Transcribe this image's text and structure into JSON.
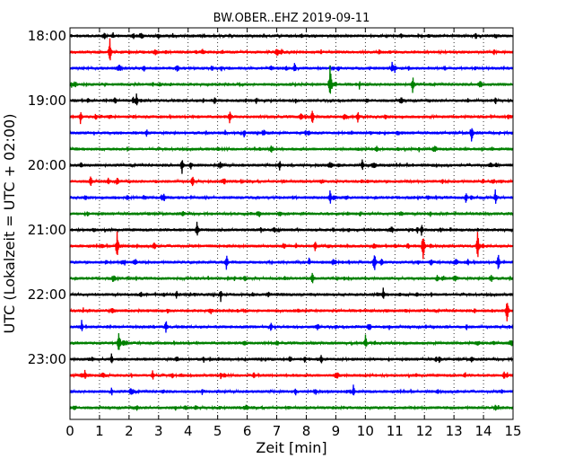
{
  "chart_data": {
    "type": "line",
    "title": "BW.OBER..EHZ 2019-09-11",
    "xlabel": "Zeit  [min]",
    "ylabel": "UTC (Lokalzeit = UTC + 02:00)",
    "xlim": [
      0,
      15
    ],
    "x_ticks": [
      "0",
      "1",
      "2",
      "3",
      "4",
      "5",
      "6",
      "7",
      "8",
      "9",
      "10",
      "11",
      "12",
      "13",
      "14",
      "15"
    ],
    "y_tick_labels": [
      "18:00",
      "19:00",
      "20:00",
      "21:00",
      "22:00",
      "23:00"
    ],
    "grid": true,
    "trace_colors": [
      "#000000",
      "#ff0000",
      "#0000ff",
      "#008000"
    ],
    "traces": [
      {
        "start": "18:00",
        "events": [
          [
            11.2,
            0.5
          ]
        ]
      },
      {
        "start": "18:15",
        "events": [
          [
            1.35,
            1.6
          ]
        ]
      },
      {
        "start": "18:30",
        "events": [
          [
            7.6,
            0.8
          ],
          [
            10.9,
            0.8
          ],
          [
            11.0,
            0.6
          ]
        ]
      },
      {
        "start": "18:45",
        "events": [
          [
            8.8,
            2.6
          ],
          [
            11.6,
            1.2
          ],
          [
            9.8,
            0.6
          ]
        ]
      },
      {
        "start": "19:00",
        "events": [
          [
            2.25,
            1.0
          ],
          [
            6.3,
            0.6
          ],
          [
            14.4,
            0.6
          ]
        ]
      },
      {
        "start": "19:15",
        "events": [
          [
            0.35,
            0.9
          ],
          [
            5.4,
            1.0
          ],
          [
            8.2,
            1.1
          ],
          [
            9.75,
            0.8
          ]
        ]
      },
      {
        "start": "19:30",
        "events": [
          [
            2.6,
            0.6
          ],
          [
            5.9,
            0.7
          ],
          [
            13.6,
            1.3
          ]
        ]
      },
      {
        "start": "19:45",
        "events": []
      },
      {
        "start": "20:00",
        "events": [
          [
            3.8,
            1.0
          ],
          [
            7.1,
            0.7
          ],
          [
            9.9,
            0.8
          ]
        ]
      },
      {
        "start": "20:15",
        "events": [
          [
            0.7,
            0.9
          ],
          [
            1.6,
            0.8
          ],
          [
            4.15,
            1.0
          ]
        ]
      },
      {
        "start": "20:30",
        "events": [
          [
            8.8,
            1.2
          ],
          [
            13.4,
            0.8
          ],
          [
            14.4,
            1.0
          ]
        ]
      },
      {
        "start": "20:45",
        "events": []
      },
      {
        "start": "21:00",
        "events": [
          [
            4.3,
            1.2
          ],
          [
            11.9,
            0.8
          ]
        ]
      },
      {
        "start": "21:15",
        "events": [
          [
            1.6,
            1.8
          ],
          [
            8.3,
            1.0
          ],
          [
            11.95,
            2.2
          ],
          [
            13.8,
            1.8
          ]
        ]
      },
      {
        "start": "21:30",
        "events": [
          [
            5.3,
            1.2
          ],
          [
            8.1,
            0.7
          ],
          [
            10.3,
            1.4
          ],
          [
            14.5,
            1.2
          ]
        ]
      },
      {
        "start": "21:45",
        "events": [
          [
            8.2,
            1.0
          ]
        ]
      },
      {
        "start": "22:00",
        "events": [
          [
            5.1,
            0.9
          ],
          [
            10.6,
            0.9
          ],
          [
            3.6,
            0.6
          ]
        ]
      },
      {
        "start": "22:15",
        "events": [
          [
            14.8,
            1.6
          ],
          [
            3.3,
            0.5
          ],
          [
            13.7,
            0.5
          ]
        ]
      },
      {
        "start": "22:30",
        "events": [
          [
            0.4,
            0.8
          ],
          [
            3.25,
            1.0
          ],
          [
            6.8,
            0.7
          ]
        ]
      },
      {
        "start": "22:45",
        "events": [
          [
            1.65,
            1.8
          ],
          [
            10.0,
            1.0
          ]
        ]
      },
      {
        "start": "23:00",
        "events": [
          [
            1.4,
            0.8
          ],
          [
            8.5,
            0.7
          ],
          [
            12.5,
            0.6
          ]
        ]
      },
      {
        "start": "23:15",
        "events": [
          [
            0.5,
            0.8
          ],
          [
            2.8,
            0.9
          ],
          [
            5.1,
            0.6
          ],
          [
            14.8,
            0.5
          ]
        ]
      },
      {
        "start": "23:30",
        "events": [
          [
            9.6,
            0.9
          ],
          [
            1.4,
            0.6
          ]
        ]
      },
      {
        "start": "23:45",
        "events": []
      }
    ]
  }
}
